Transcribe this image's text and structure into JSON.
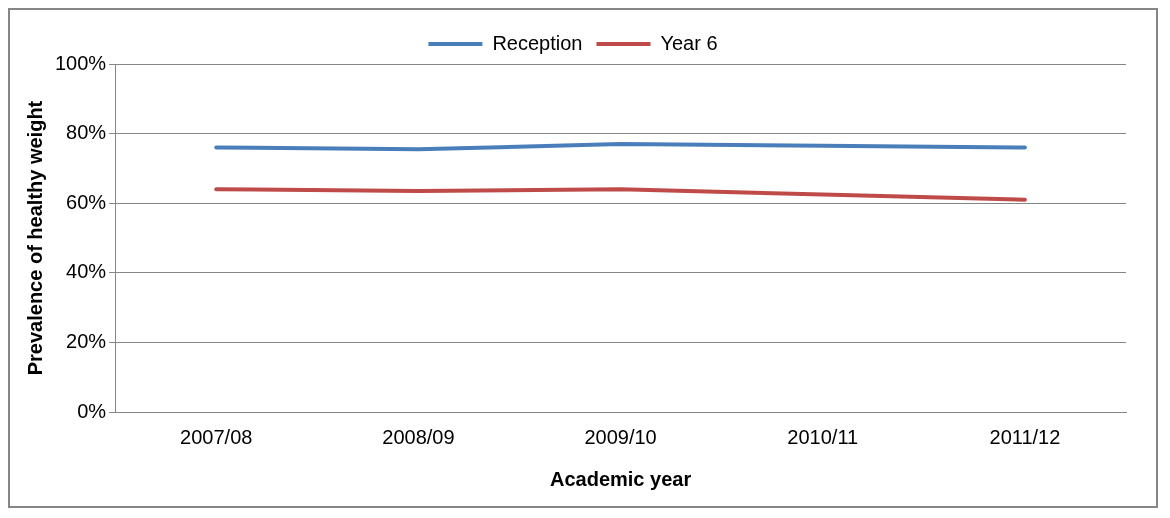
{
  "chart_data": {
    "type": "line",
    "xlabel": "Academic year",
    "ylabel": "Prevalence of healthy weight",
    "categories": [
      "2007/08",
      "2008/09",
      "2009/10",
      "2010/11",
      "2011/12"
    ],
    "series": [
      {
        "name": "Reception",
        "color": "#4a7ebb",
        "values": [
          76,
          75.5,
          77,
          76.5,
          76
        ]
      },
      {
        "name": "Year 6",
        "color": "#be4b48",
        "values": [
          64,
          63.5,
          64,
          62.5,
          61
        ]
      }
    ],
    "ylim": [
      0,
      100
    ],
    "yticks": [
      {
        "value": 0,
        "label": "0%"
      },
      {
        "value": 20,
        "label": "20%"
      },
      {
        "value": 40,
        "label": "40%"
      },
      {
        "value": 60,
        "label": "60%"
      },
      {
        "value": 80,
        "label": "80%"
      },
      {
        "value": 100,
        "label": "100%"
      }
    ],
    "grid": "y",
    "legend": "top",
    "marker": "none",
    "line_style": "solid"
  }
}
